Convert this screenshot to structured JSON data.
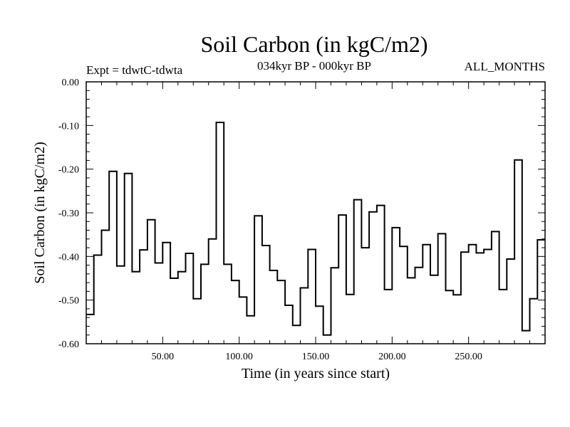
{
  "chart_data": {
    "type": "line",
    "step": true,
    "title": "Soil Carbon (in kgC/m2)",
    "subtitle_left": "Expt = tdwtC-tdwta",
    "subtitle_center": "034kyr BP - 000kyr BP",
    "subtitle_right": "ALL_MONTHS",
    "xlabel": "Time (in years since start)",
    "ylabel": "Soil Carbon (in kgC/m2)",
    "xlim": [
      0,
      300
    ],
    "ylim": [
      -0.6,
      0.0
    ],
    "x_ticks": [
      {
        "value": 50,
        "label": "50.00"
      },
      {
        "value": 100,
        "label": "100.00"
      },
      {
        "value": 150,
        "label": "150.00"
      },
      {
        "value": 200,
        "label": "200.00"
      },
      {
        "value": 250,
        "label": "250.00"
      }
    ],
    "y_ticks": [
      {
        "value": 0.0,
        "label": "0.00"
      },
      {
        "value": -0.1,
        "label": "-0.10"
      },
      {
        "value": -0.2,
        "label": "-0.20"
      },
      {
        "value": -0.3,
        "label": "-0.30"
      },
      {
        "value": -0.4,
        "label": "-0.40"
      },
      {
        "value": -0.5,
        "label": "-0.50"
      },
      {
        "value": -0.6,
        "label": "-0.60"
      }
    ],
    "series": [
      {
        "name": "Soil Carbon",
        "x_start": 0,
        "x_step": 5,
        "values": [
          -0.533,
          -0.397,
          -0.34,
          -0.205,
          -0.422,
          -0.21,
          -0.435,
          -0.385,
          -0.316,
          -0.415,
          -0.368,
          -0.45,
          -0.435,
          -0.393,
          -0.497,
          -0.418,
          -0.36,
          -0.093,
          -0.418,
          -0.455,
          -0.493,
          -0.536,
          -0.307,
          -0.375,
          -0.432,
          -0.455,
          -0.512,
          -0.558,
          -0.472,
          -0.384,
          -0.514,
          -0.58,
          -0.426,
          -0.305,
          -0.487,
          -0.27,
          -0.38,
          -0.298,
          -0.283,
          -0.476,
          -0.334,
          -0.377,
          -0.449,
          -0.425,
          -0.373,
          -0.443,
          -0.348,
          -0.478,
          -0.488,
          -0.39,
          -0.373,
          -0.392,
          -0.384,
          -0.343,
          -0.476,
          -0.406,
          -0.179,
          -0.57,
          -0.497,
          -0.362
        ]
      }
    ]
  }
}
